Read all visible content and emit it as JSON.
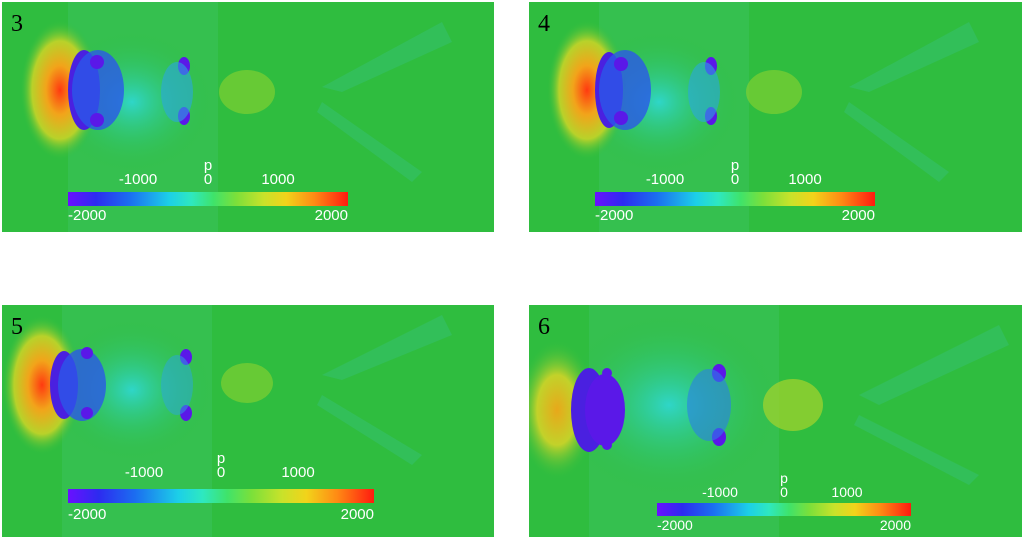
{
  "panels": [
    {
      "label": "3"
    },
    {
      "label": "4"
    },
    {
      "label": "5"
    },
    {
      "label": "6"
    }
  ],
  "colorbar": {
    "variable": "p",
    "upper_ticks": [
      "-1000",
      "0",
      "1000"
    ],
    "min_label": "-2000",
    "max_label": "2000",
    "range": [
      -2000,
      2000
    ]
  },
  "colors": {
    "background": "#2fbd3f",
    "high_pressure": "#ff2a10",
    "low_pressure": "#5a18e8"
  }
}
